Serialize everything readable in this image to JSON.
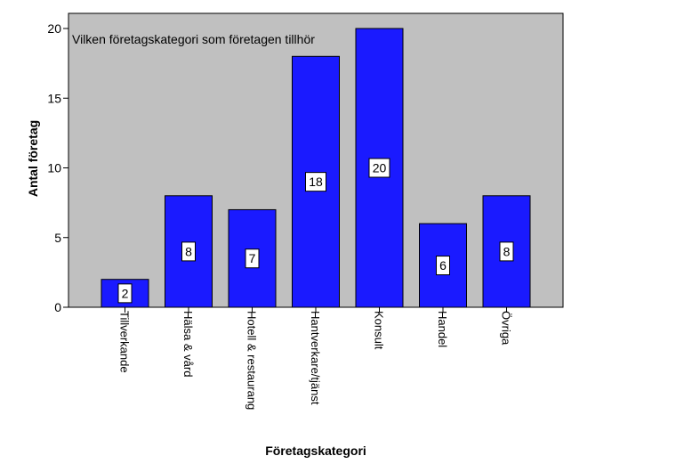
{
  "chart_data": {
    "type": "bar",
    "title": "Vilken företagskategori som företagen tillhör",
    "xlabel": "Företagskategori",
    "ylabel": "Antal företag",
    "categories": [
      "Tillverkande",
      "Hälsa & vård",
      "Hotell & restaurang",
      "Hantverkare/tjänst",
      "Konsult",
      "Handel",
      "Övriga"
    ],
    "values": [
      2,
      8,
      7,
      18,
      20,
      6,
      8
    ],
    "data_labels": [
      "2",
      "8",
      "7",
      "18",
      "20",
      "6",
      "8"
    ],
    "ylim": [
      0,
      20
    ],
    "yticks": [
      "0",
      "5",
      "10",
      "15",
      "20"
    ],
    "grid": false,
    "colors": {
      "bar_fill": "#1a1aff",
      "bar_stroke": "#000000",
      "plot_background": "#c0c0c0",
      "label_box": "#ffffff"
    }
  }
}
